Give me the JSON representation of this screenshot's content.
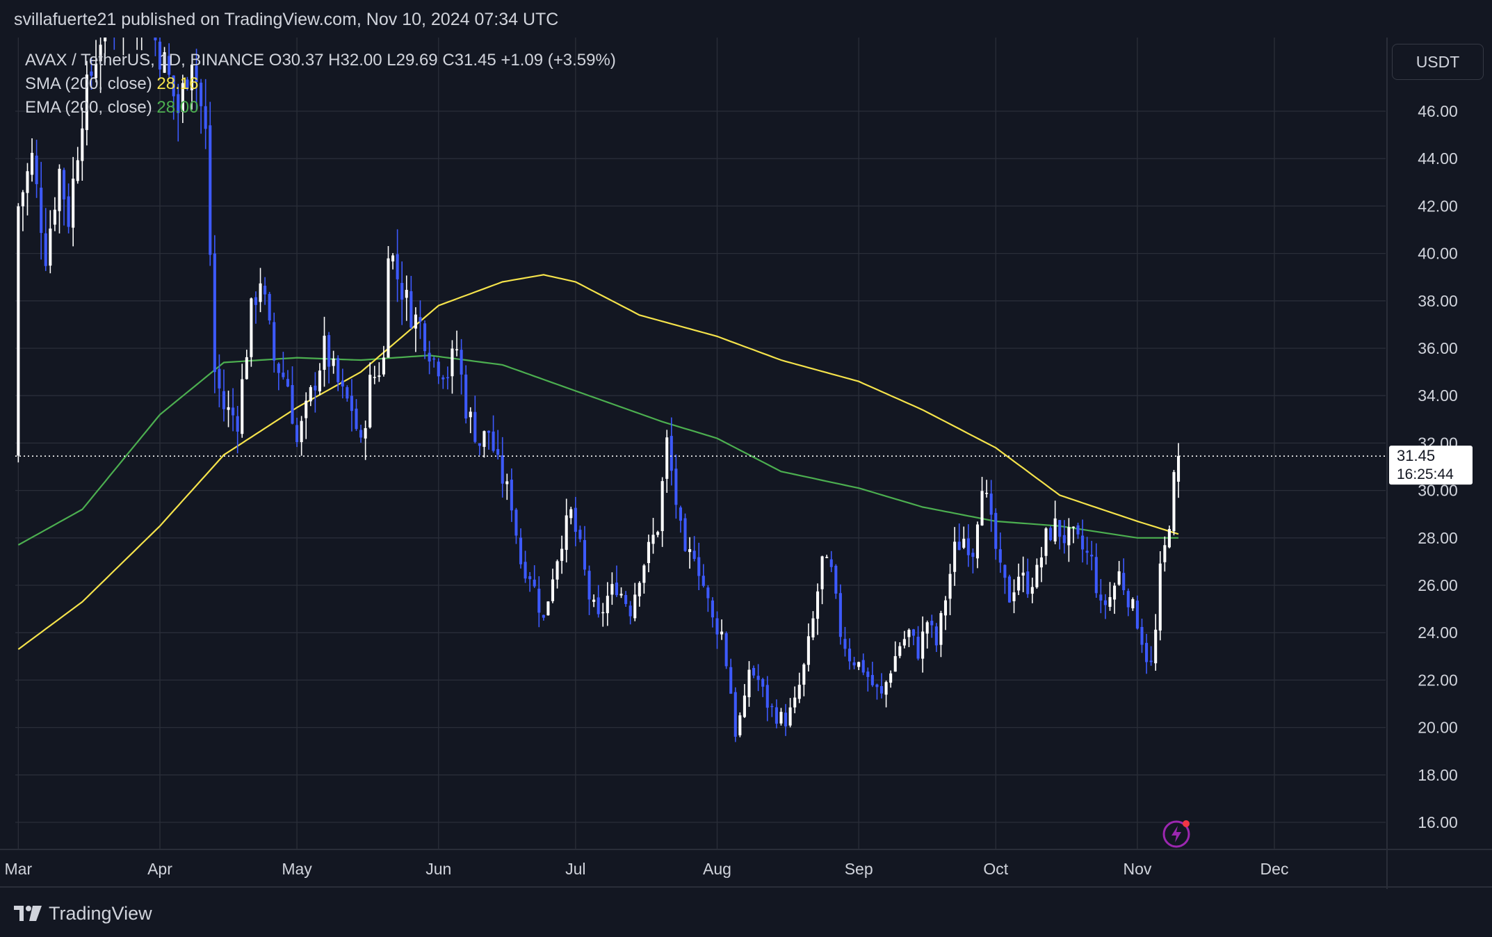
{
  "header": {
    "published": "svillafuerte21 published on TradingView.com, Nov 10, 2024 07:34 UTC"
  },
  "legend": {
    "symbol_line": "AVAX / TetherUS, 1D, BINANCE  O30.37  H32.00  L29.69  C31.45  +1.09 (+3.59%)",
    "sma_label": "SMA (200, close)",
    "sma_value": "28.16",
    "ema_label": "EMA (200, close)",
    "ema_value": "28.00"
  },
  "currency": "USDT",
  "price_tag": {
    "price": "31.45",
    "countdown": "16:25:44"
  },
  "footer": {
    "brand": "TradingView"
  },
  "colors": {
    "background": "#131722",
    "up_candle": "#ffffff",
    "down_candle": "#3d5afe",
    "sma": "#f5e34b",
    "ema": "#4caf50",
    "grid": "#2a2e39"
  },
  "chart_data": {
    "type": "candlestick",
    "title": "AVAX / TetherUS, 1D, BINANCE",
    "y_range": [
      15,
      50
    ],
    "y_ticks": [
      16,
      18,
      20,
      22,
      24,
      26,
      28,
      30,
      32,
      34,
      36,
      38,
      40,
      42,
      44,
      46
    ],
    "y_tick_labels": [
      "16.00",
      "18.00",
      "20.00",
      "22.00",
      "24.00",
      "26.00",
      "28.00",
      "30.00",
      "32.00",
      "34.00",
      "36.00",
      "38.00",
      "40.00",
      "42.00",
      "44.00",
      "46.00"
    ],
    "x_range": [
      "2024-03-01",
      "2024-12-31"
    ],
    "x_ticks": [
      {
        "label": "Mar",
        "date": "2024-03-01"
      },
      {
        "label": "Apr",
        "date": "2024-04-01"
      },
      {
        "label": "May",
        "date": "2024-05-01"
      },
      {
        "label": "Jun",
        "date": "2024-06-01"
      },
      {
        "label": "Jul",
        "date": "2024-07-01"
      },
      {
        "label": "Aug",
        "date": "2024-08-01"
      },
      {
        "label": "Sep",
        "date": "2024-09-01"
      },
      {
        "label": "Oct",
        "date": "2024-10-01"
      },
      {
        "label": "Nov",
        "date": "2024-11-01"
      },
      {
        "label": "Dec",
        "date": "2024-12-01"
      }
    ],
    "last_close": 31.45,
    "close_anchors": [
      [
        "2024-03-01",
        42.0
      ],
      [
        "2024-03-04",
        44.0
      ],
      [
        "2024-03-07",
        40.0
      ],
      [
        "2024-03-10",
        43.5
      ],
      [
        "2024-03-12",
        41.5
      ],
      [
        "2024-03-15",
        46.0
      ],
      [
        "2024-03-20",
        50.0
      ],
      [
        "2024-03-28",
        50.5
      ],
      [
        "2024-04-02",
        48.0
      ],
      [
        "2024-04-05",
        46.0
      ],
      [
        "2024-04-08",
        48.5
      ],
      [
        "2024-04-11",
        45.0
      ],
      [
        "2024-04-13",
        35.0
      ],
      [
        "2024-04-15",
        33.5
      ],
      [
        "2024-04-18",
        33.0
      ],
      [
        "2024-04-21",
        37.5
      ],
      [
        "2024-04-23",
        39.0
      ],
      [
        "2024-04-26",
        35.5
      ],
      [
        "2024-04-29",
        34.5
      ],
      [
        "2024-05-01",
        32.0
      ],
      [
        "2024-05-04",
        34.0
      ],
      [
        "2024-05-07",
        36.0
      ],
      [
        "2024-05-09",
        35.0
      ],
      [
        "2024-05-11",
        34.0
      ],
      [
        "2024-05-13",
        33.5
      ],
      [
        "2024-05-15",
        31.8
      ],
      [
        "2024-05-17",
        34.5
      ],
      [
        "2024-05-20",
        35.5
      ],
      [
        "2024-05-21",
        40.5
      ],
      [
        "2024-05-23",
        39.0
      ],
      [
        "2024-05-26",
        37.5
      ],
      [
        "2024-05-28",
        37.0
      ],
      [
        "2024-05-31",
        35.5
      ],
      [
        "2024-06-03",
        35.0
      ],
      [
        "2024-06-05",
        36.0
      ],
      [
        "2024-06-07",
        33.5
      ],
      [
        "2024-06-10",
        32.0
      ],
      [
        "2024-06-12",
        32.5
      ],
      [
        "2024-06-14",
        31.0
      ],
      [
        "2024-06-17",
        29.5
      ],
      [
        "2024-06-19",
        27.0
      ],
      [
        "2024-06-21",
        26.5
      ],
      [
        "2024-06-24",
        24.5
      ],
      [
        "2024-06-26",
        26.5
      ],
      [
        "2024-06-28",
        28.0
      ],
      [
        "2024-06-30",
        29.0
      ],
      [
        "2024-07-02",
        27.5
      ],
      [
        "2024-07-04",
        25.5
      ],
      [
        "2024-07-06",
        24.5
      ],
      [
        "2024-07-08",
        25.5
      ],
      [
        "2024-07-10",
        26.0
      ],
      [
        "2024-07-13",
        25.0
      ],
      [
        "2024-07-15",
        26.5
      ],
      [
        "2024-07-17",
        27.5
      ],
      [
        "2024-07-19",
        28.5
      ],
      [
        "2024-07-21",
        32.0
      ],
      [
        "2024-07-23",
        29.5
      ],
      [
        "2024-07-25",
        27.0
      ],
      [
        "2024-07-27",
        27.5
      ],
      [
        "2024-07-29",
        26.0
      ],
      [
        "2024-07-31",
        24.5
      ],
      [
        "2024-08-02",
        24.0
      ],
      [
        "2024-08-04",
        21.5
      ],
      [
        "2024-08-05",
        19.8
      ],
      [
        "2024-08-07",
        21.0
      ],
      [
        "2024-08-08",
        22.5
      ],
      [
        "2024-08-10",
        22.0
      ],
      [
        "2024-08-12",
        21.0
      ],
      [
        "2024-08-14",
        20.5
      ],
      [
        "2024-08-16",
        20.3
      ],
      [
        "2024-08-18",
        21.0
      ],
      [
        "2024-08-20",
        22.5
      ],
      [
        "2024-08-22",
        24.5
      ],
      [
        "2024-08-24",
        27.0
      ],
      [
        "2024-08-26",
        26.5
      ],
      [
        "2024-08-28",
        24.0
      ],
      [
        "2024-08-30",
        23.0
      ],
      [
        "2024-09-02",
        22.5
      ],
      [
        "2024-09-04",
        21.8
      ],
      [
        "2024-09-06",
        21.3
      ],
      [
        "2024-09-08",
        22.5
      ],
      [
        "2024-09-10",
        23.5
      ],
      [
        "2024-09-12",
        24.0
      ],
      [
        "2024-09-14",
        23.2
      ],
      [
        "2024-09-16",
        24.5
      ],
      [
        "2024-09-18",
        23.5
      ],
      [
        "2024-09-20",
        25.5
      ],
      [
        "2024-09-22",
        27.5
      ],
      [
        "2024-09-24",
        28.0
      ],
      [
        "2024-09-26",
        27.5
      ],
      [
        "2024-09-28",
        30.5
      ],
      [
        "2024-09-30",
        28.5
      ],
      [
        "2024-10-02",
        26.5
      ],
      [
        "2024-10-04",
        25.5
      ],
      [
        "2024-10-06",
        26.5
      ],
      [
        "2024-10-08",
        26.0
      ],
      [
        "2024-10-10",
        26.5
      ],
      [
        "2024-10-12",
        28.0
      ],
      [
        "2024-10-14",
        28.5
      ],
      [
        "2024-10-16",
        28.0
      ],
      [
        "2024-10-18",
        28.0
      ],
      [
        "2024-10-20",
        27.5
      ],
      [
        "2024-10-22",
        27.0
      ],
      [
        "2024-10-24",
        25.0
      ],
      [
        "2024-10-26",
        25.5
      ],
      [
        "2024-10-28",
        26.5
      ],
      [
        "2024-10-30",
        25.5
      ],
      [
        "2024-11-01",
        24.5
      ],
      [
        "2024-11-03",
        23.0
      ],
      [
        "2024-11-04",
        22.6
      ],
      [
        "2024-11-05",
        24.0
      ],
      [
        "2024-11-06",
        26.5
      ],
      [
        "2024-11-07",
        27.5
      ],
      [
        "2024-11-08",
        28.8
      ],
      [
        "2024-11-09",
        30.37
      ],
      [
        "2024-11-10",
        31.45
      ]
    ],
    "sma200": [
      [
        "2024-03-01",
        23.3
      ],
      [
        "2024-03-15",
        25.3
      ],
      [
        "2024-04-01",
        28.5
      ],
      [
        "2024-04-15",
        31.5
      ],
      [
        "2024-05-01",
        33.5
      ],
      [
        "2024-05-15",
        35.0
      ],
      [
        "2024-06-01",
        37.8
      ],
      [
        "2024-06-15",
        38.8
      ],
      [
        "2024-06-24",
        39.1
      ],
      [
        "2024-07-01",
        38.8
      ],
      [
        "2024-07-15",
        37.4
      ],
      [
        "2024-08-01",
        36.5
      ],
      [
        "2024-08-15",
        35.5
      ],
      [
        "2024-09-01",
        34.6
      ],
      [
        "2024-09-15",
        33.4
      ],
      [
        "2024-10-01",
        31.8
      ],
      [
        "2024-10-15",
        29.8
      ],
      [
        "2024-11-01",
        28.7
      ],
      [
        "2024-11-10",
        28.16
      ]
    ],
    "ema200": [
      [
        "2024-03-01",
        27.7
      ],
      [
        "2024-03-15",
        29.2
      ],
      [
        "2024-04-01",
        33.2
      ],
      [
        "2024-04-15",
        35.4
      ],
      [
        "2024-05-01",
        35.6
      ],
      [
        "2024-05-15",
        35.5
      ],
      [
        "2024-05-30",
        35.7
      ],
      [
        "2024-06-15",
        35.3
      ],
      [
        "2024-07-01",
        34.2
      ],
      [
        "2024-07-20",
        32.9
      ],
      [
        "2024-08-01",
        32.2
      ],
      [
        "2024-08-15",
        30.8
      ],
      [
        "2024-09-01",
        30.1
      ],
      [
        "2024-09-15",
        29.3
      ],
      [
        "2024-10-01",
        28.7
      ],
      [
        "2024-10-15",
        28.5
      ],
      [
        "2024-11-01",
        28.0
      ],
      [
        "2024-11-10",
        28.0
      ]
    ]
  }
}
